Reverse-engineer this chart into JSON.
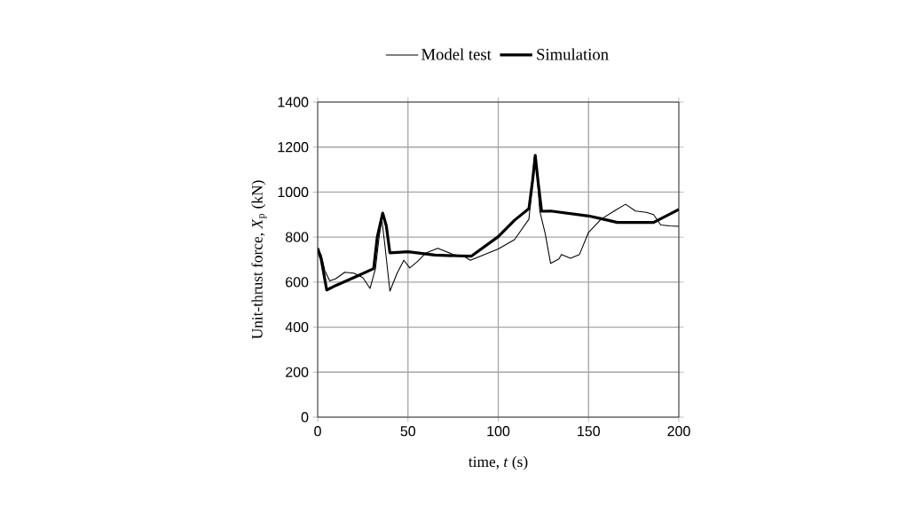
{
  "chart_data": {
    "type": "line",
    "xlabel": "time, *t* (s)",
    "ylabel": "Unit-thrust force,  *X*$_{p}$ (kN)",
    "xlim": [
      0,
      200
    ],
    "ylim": [
      0,
      1400
    ],
    "xticks": [
      0,
      50,
      100,
      150,
      200
    ],
    "yticks": [
      0,
      200,
      400,
      600,
      800,
      1000,
      1200,
      1400
    ],
    "grid": true,
    "legend": "top",
    "series": [
      {
        "name": "Model test",
        "color": "#000000",
        "x": [
          0,
          2,
          4,
          6.7,
          10,
          15,
          20,
          25,
          29,
          32,
          34,
          35.5,
          37,
          40,
          44,
          47.7,
          51,
          55,
          60,
          66.5,
          75,
          81,
          84.5,
          90,
          100,
          109,
          117,
          119,
          120,
          121.5,
          123,
          126,
          129,
          133.6,
          135,
          140,
          145,
          150,
          157,
          165,
          170.5,
          176,
          182,
          186,
          190,
          195,
          200
        ],
        "values": [
          750,
          720,
          650,
          605,
          615,
          644,
          640,
          620,
          572,
          660,
          800,
          880,
          780,
          560,
          640,
          697,
          663,
          690,
          730,
          750,
          723,
          715,
          697,
          715,
          747,
          789,
          880,
          1050,
          1157,
          1080,
          915,
          816,
          683,
          703,
          723,
          706,
          723,
          821,
          880,
          920,
          946,
          916,
          910,
          900,
          854,
          850,
          848
        ]
      },
      {
        "name": "Simulation",
        "color": "#000000",
        "x": [
          0,
          2,
          5,
          10,
          20,
          31,
          33,
          36,
          38,
          40,
          50,
          65,
          85,
          100,
          109,
          117,
          119,
          120.5,
          122,
          124,
          129,
          150,
          158,
          166,
          186,
          200
        ],
        "values": [
          750,
          700,
          565,
          585,
          620,
          660,
          800,
          907,
          850,
          730,
          735,
          720,
          715,
          802,
          875,
          927,
          1050,
          1163,
          1050,
          915,
          916,
          894,
          880,
          865,
          865,
          923
        ]
      }
    ]
  }
}
